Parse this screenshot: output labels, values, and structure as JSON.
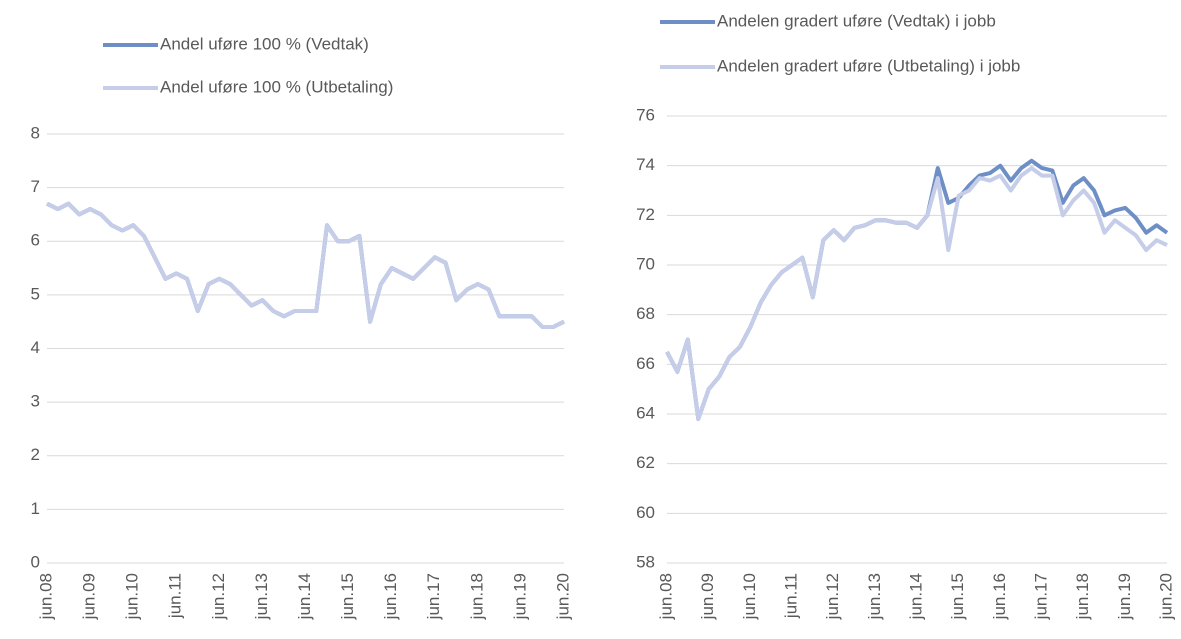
{
  "chart_data": [
    {
      "type": "line",
      "categories": [
        "jun.08",
        null,
        null,
        null,
        "jun.09",
        null,
        null,
        null,
        "jun.10",
        null,
        null,
        null,
        "jun.11",
        null,
        null,
        null,
        "jun.12",
        null,
        null,
        null,
        "jun.13",
        null,
        null,
        null,
        "jun.14",
        null,
        null,
        null,
        "jun.15",
        null,
        null,
        null,
        "jun.16",
        null,
        null,
        null,
        "jun.17",
        null,
        null,
        null,
        "jun.18",
        null,
        null,
        null,
        "jun.19",
        null,
        null,
        null,
        "jun.20"
      ],
      "series": [
        {
          "name": "Andel uføre 100 % (Vedtak)",
          "color": "#6d8fc6",
          "values": [
            6.7,
            6.6,
            6.7,
            6.5,
            6.6,
            6.5,
            6.3,
            6.2,
            6.3,
            6.1,
            5.7,
            5.3,
            5.4,
            5.3,
            4.7,
            5.2,
            5.3,
            5.2,
            5.0,
            4.8,
            4.9,
            4.7,
            4.6,
            4.7,
            4.7,
            4.7,
            6.3,
            6.0,
            6.0,
            6.1,
            4.5,
            5.2,
            5.5,
            5.4,
            5.3,
            5.5,
            5.7,
            5.6,
            4.9,
            5.1,
            5.2,
            5.1,
            4.6,
            4.6,
            4.6,
            4.6,
            4.4,
            4.4,
            4.5
          ]
        },
        {
          "name": "Andel uføre 100 % (Utbetaling)",
          "color": "#c5cde8",
          "values": [
            6.7,
            6.6,
            6.7,
            6.5,
            6.6,
            6.5,
            6.3,
            6.2,
            6.3,
            6.1,
            5.7,
            5.3,
            5.4,
            5.3,
            4.7,
            5.2,
            5.3,
            5.2,
            5.0,
            4.8,
            4.9,
            4.7,
            4.6,
            4.7,
            4.7,
            4.7,
            6.3,
            6.0,
            6.0,
            6.1,
            4.5,
            5.2,
            5.5,
            5.4,
            5.3,
            5.5,
            5.7,
            5.6,
            4.9,
            5.1,
            5.2,
            5.1,
            4.6,
            4.6,
            4.6,
            4.6,
            4.4,
            4.4,
            4.5
          ]
        }
      ],
      "ylim": [
        0,
        8
      ],
      "yticks": [
        0,
        1,
        2,
        3,
        4,
        5,
        6,
        7,
        8
      ],
      "grid": true
    },
    {
      "type": "line",
      "categories": [
        "jun.08",
        null,
        null,
        null,
        "jun.09",
        null,
        null,
        null,
        "jun.10",
        null,
        null,
        null,
        "jun.11",
        null,
        null,
        null,
        "jun.12",
        null,
        null,
        null,
        "jun.13",
        null,
        null,
        null,
        "jun.14",
        null,
        null,
        null,
        "jun.15",
        null,
        null,
        null,
        "jun.16",
        null,
        null,
        null,
        "jun.17",
        null,
        null,
        null,
        "jun.18",
        null,
        null,
        null,
        "jun.19",
        null,
        null,
        null,
        "jun.20"
      ],
      "series": [
        {
          "name": "Andelen gradert uføre (Vedtak) i jobb",
          "color": "#6d8fc6",
          "values": [
            66.5,
            65.7,
            67.0,
            63.8,
            65.0,
            65.5,
            66.3,
            66.7,
            67.5,
            68.5,
            69.2,
            69.7,
            70.0,
            70.3,
            68.7,
            71.0,
            71.4,
            71.0,
            71.5,
            71.6,
            71.8,
            71.8,
            71.7,
            71.7,
            71.5,
            72.0,
            73.9,
            72.5,
            72.7,
            73.2,
            73.6,
            73.7,
            74.0,
            73.4,
            73.9,
            74.2,
            73.9,
            73.8,
            72.5,
            73.2,
            73.5,
            73.0,
            72.0,
            72.2,
            72.3,
            71.9,
            71.3,
            71.6,
            71.3
          ]
        },
        {
          "name": "Andelen gradert uføre (Utbetaling) i jobb",
          "color": "#c5cde8",
          "values": [
            66.5,
            65.7,
            67.0,
            63.8,
            65.0,
            65.5,
            66.3,
            66.7,
            67.5,
            68.5,
            69.2,
            69.7,
            70.0,
            70.3,
            68.7,
            71.0,
            71.4,
            71.0,
            71.5,
            71.6,
            71.8,
            71.8,
            71.7,
            71.7,
            71.5,
            72.0,
            73.5,
            70.6,
            72.8,
            73.0,
            73.5,
            73.4,
            73.6,
            73.0,
            73.6,
            73.9,
            73.6,
            73.6,
            72.0,
            72.6,
            73.0,
            72.5,
            71.3,
            71.8,
            71.5,
            71.2,
            70.6,
            71.0,
            70.8
          ]
        }
      ],
      "ylim": [
        58,
        76
      ],
      "yticks": [
        58,
        60,
        62,
        64,
        66,
        68,
        70,
        72,
        74,
        76
      ],
      "grid": true
    }
  ]
}
